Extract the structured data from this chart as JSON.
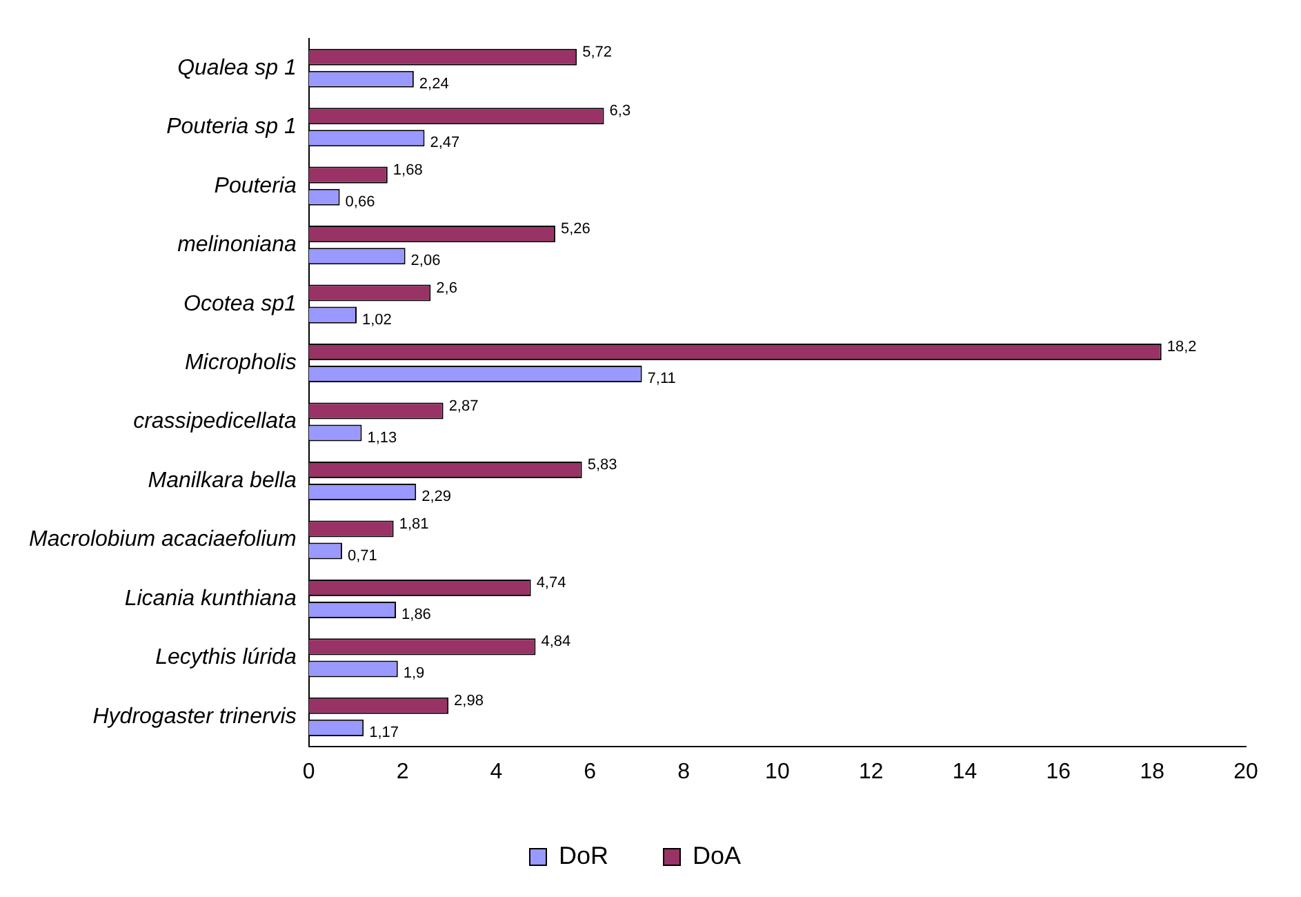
{
  "chart_data": {
    "type": "bar",
    "orientation": "horizontal",
    "categories": [
      "Qualea sp 1",
      "Pouteria sp 1",
      "Pouteria",
      "melinoniana",
      "Ocotea sp1",
      "Micropholis",
      "crassipedicellata",
      "Manilkara bella",
      "Macrolobium acaciaefolium",
      "Licania kunthiana",
      "Lecythis lúrida",
      "Hydrogaster trinervis"
    ],
    "series": [
      {
        "name": "DoA",
        "color": "#993366",
        "values": [
          5.72,
          6.3,
          1.68,
          5.26,
          2.6,
          18.2,
          2.87,
          5.83,
          1.81,
          4.74,
          4.84,
          2.98
        ],
        "value_labels": [
          "5,72",
          "6,3",
          "1,68",
          "5,26",
          "2,6",
          "18,2",
          "2,87",
          "5,83",
          "1,81",
          "4,74",
          "4,84",
          "2,98"
        ]
      },
      {
        "name": "DoR",
        "color": "#9999ff",
        "values": [
          2.24,
          2.47,
          0.66,
          2.06,
          1.02,
          7.11,
          1.13,
          2.29,
          0.71,
          1.86,
          1.9,
          1.17
        ],
        "value_labels": [
          "2,24",
          "2,47",
          "0,66",
          "2,06",
          "1,02",
          "7,11",
          "1,13",
          "2,29",
          "0,71",
          "1,86",
          "1,9",
          "1,17"
        ]
      }
    ],
    "xlim": [
      0,
      20
    ],
    "xticks": [
      0,
      2,
      4,
      6,
      8,
      10,
      12,
      14,
      16,
      18,
      20
    ],
    "grid": false,
    "legend": "bottom"
  }
}
